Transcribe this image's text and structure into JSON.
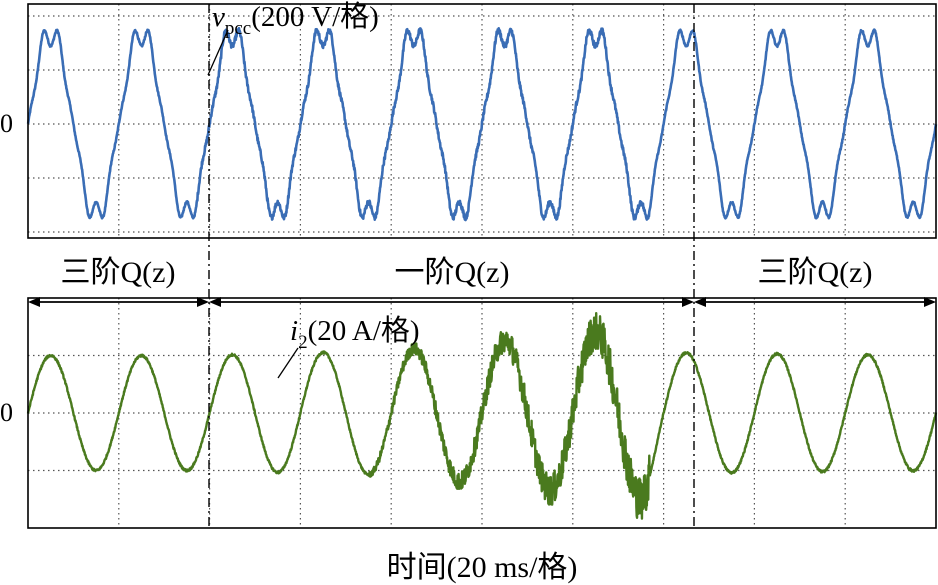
{
  "chart_data": {
    "type": "line",
    "xlabel": "时间(20 ms/格)",
    "x_divisions": 10,
    "x_range_ms": [
      0,
      200
    ],
    "fundamental_frequency_hz": 50,
    "grid": true,
    "mode_segments": [
      {
        "label": "三阶Q(z)",
        "from_ms": 0,
        "to_ms": 37
      },
      {
        "label": "一阶Q(z)",
        "from_ms": 37,
        "to_ms": 137
      },
      {
        "label": "三阶Q(z)",
        "from_ms": 137,
        "to_ms": 200
      }
    ],
    "panels": [
      {
        "series": {
          "name": "vpcc",
          "symbol": "v",
          "subscript": "pcc",
          "scale": "(200 V/格)",
          "color": "#3a6db5"
        },
        "zero_label": "0",
        "y_divisions": 4,
        "amplitude_div": 1.7,
        "harmonic_5_ratio": 0.09,
        "harmonic_7_ratio": 0.06
      },
      {
        "series": {
          "name": "i2",
          "symbol": "i",
          "subscript": "2",
          "scale": "(20 A/格)",
          "color": "#4a7a1e"
        },
        "zero_label": "0",
        "y_divisions": 4,
        "amplitude_div": 1.0,
        "envelope": [
          {
            "t_ms": 0,
            "amplitude_div": 1.0
          },
          {
            "t_ms": 37,
            "amplitude_div": 1.0
          },
          {
            "t_ms": 80,
            "amplitude_div": 1.08
          },
          {
            "t_ms": 110,
            "amplitude_div": 1.3
          },
          {
            "t_ms": 135,
            "amplitude_div": 1.5
          },
          {
            "t_ms": 140,
            "amplitude_div": 1.05
          },
          {
            "t_ms": 200,
            "amplitude_div": 1.0
          }
        ]
      }
    ]
  }
}
